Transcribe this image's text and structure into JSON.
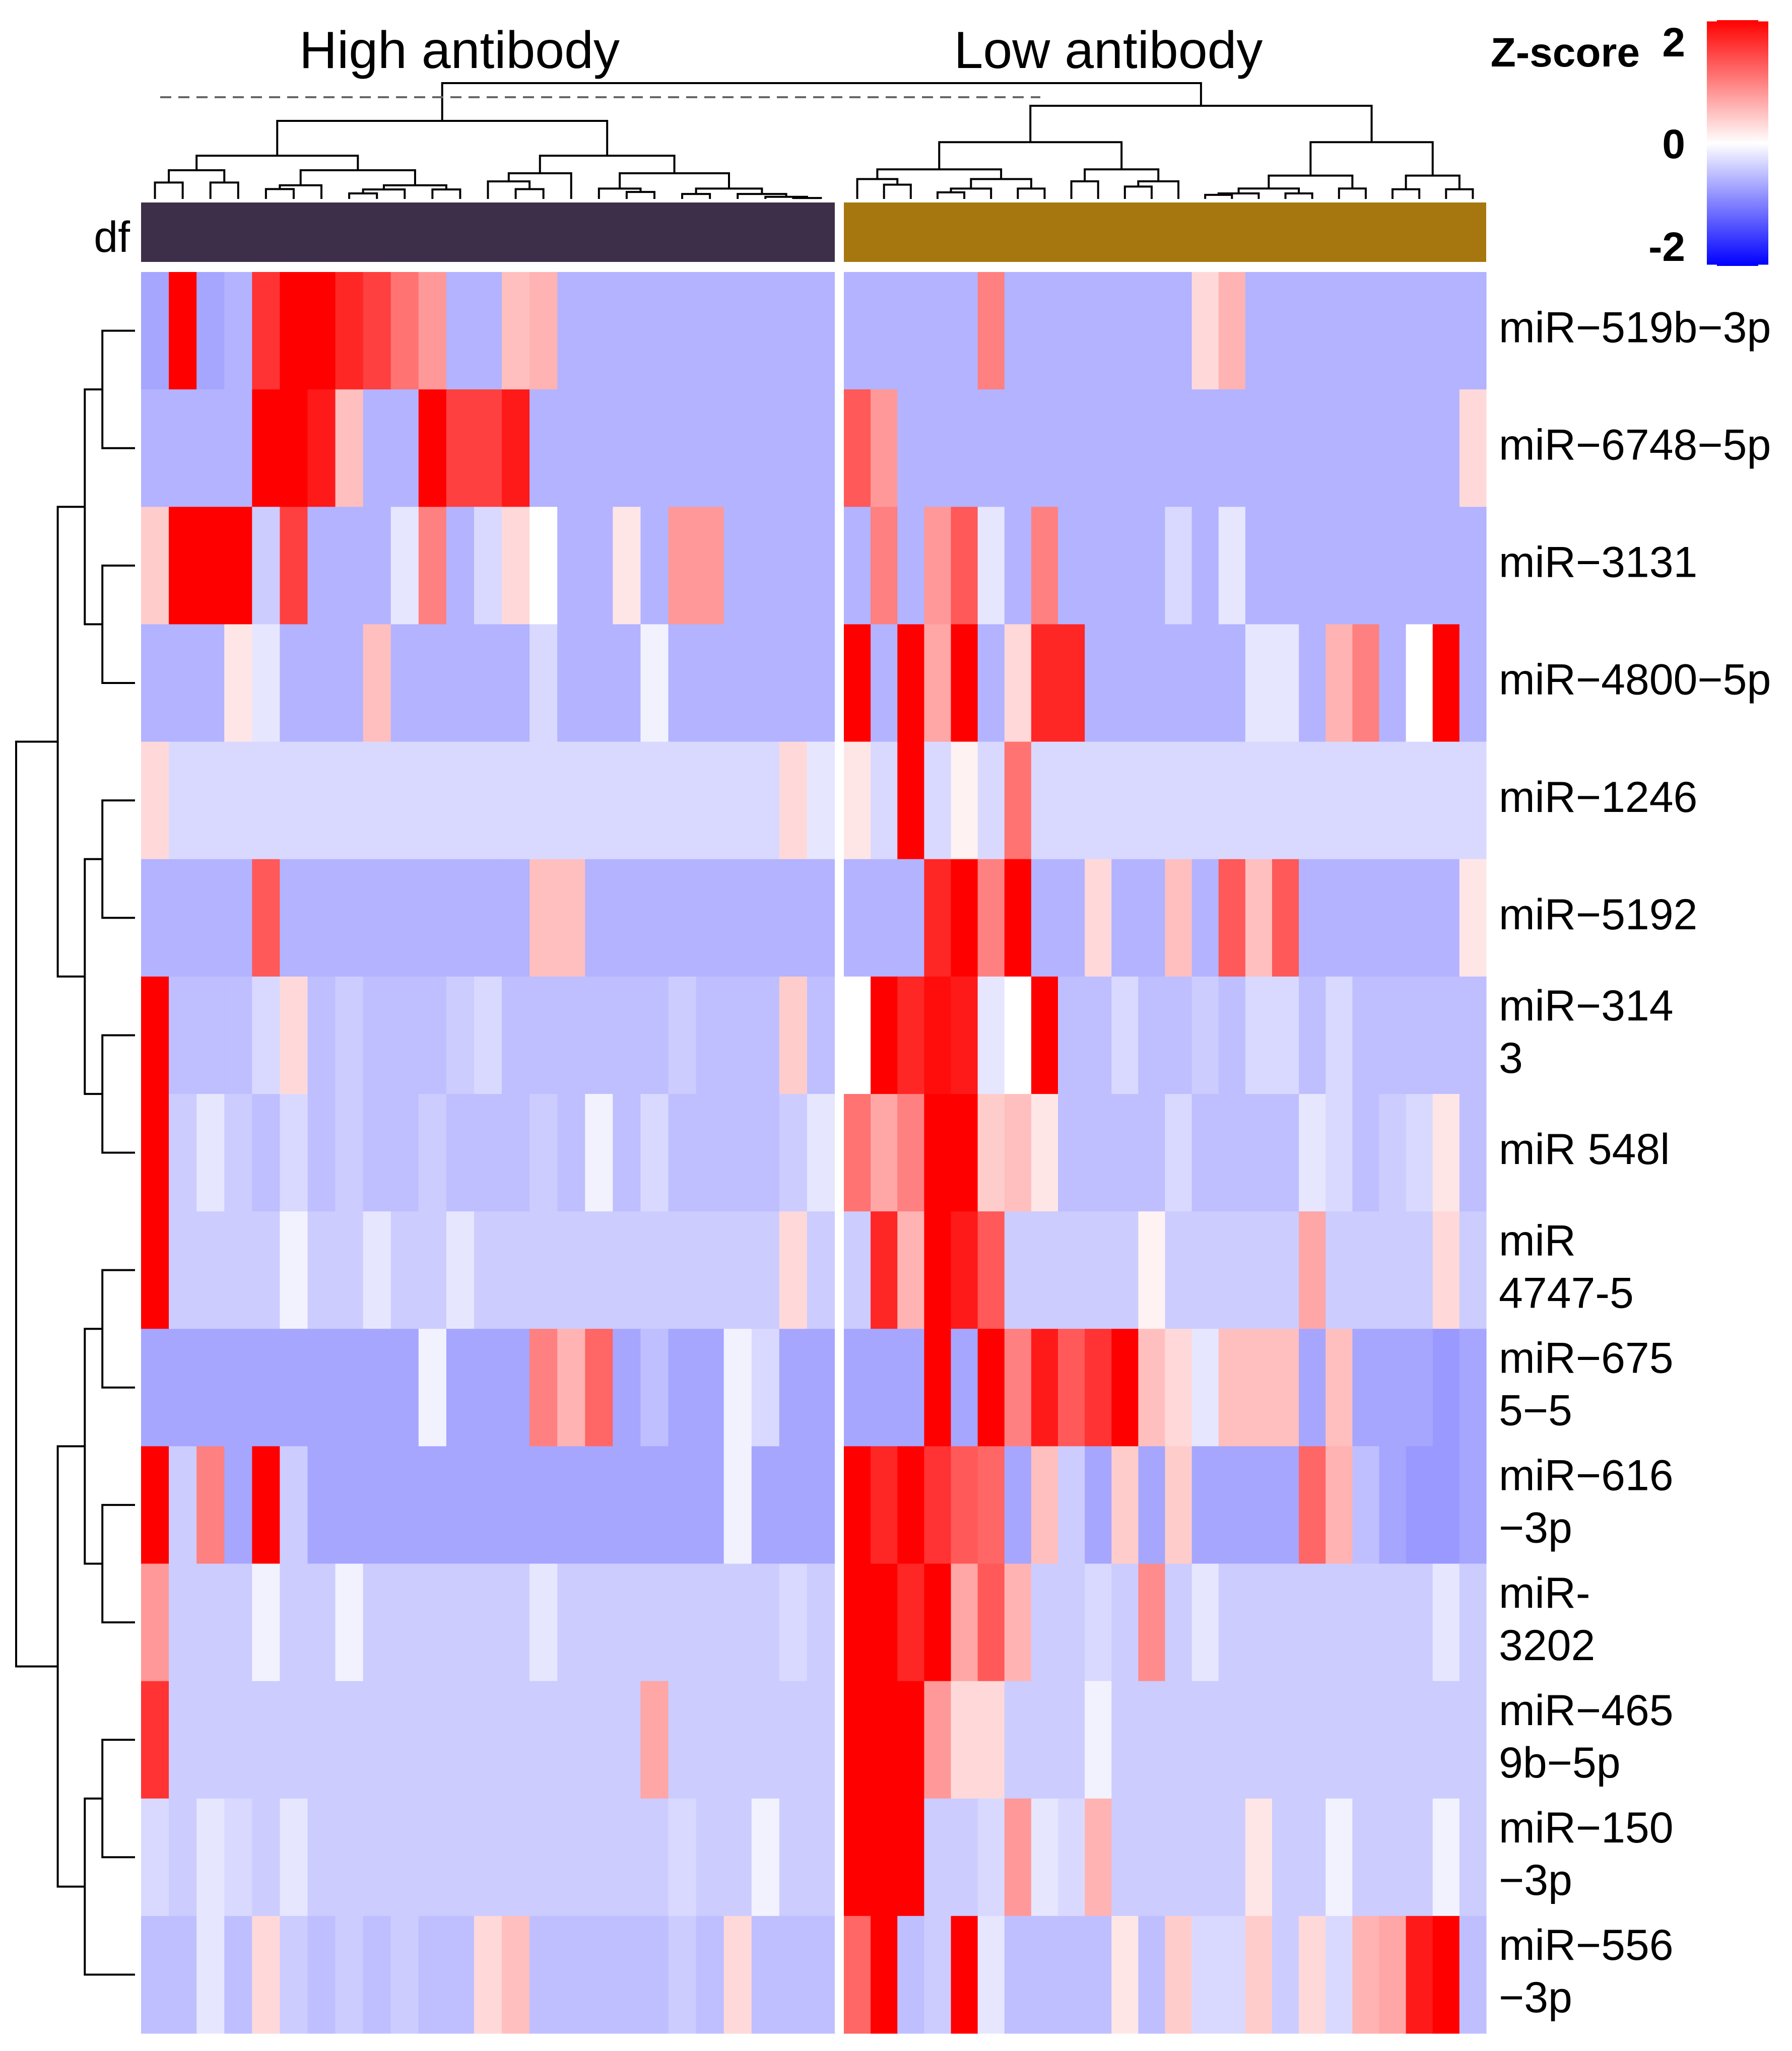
{
  "chart_data": {
    "type": "heatmap",
    "title": "",
    "groups": [
      {
        "name": "High antibody",
        "color": "#3d2f4a",
        "n_columns": 25
      },
      {
        "name": "Low antibody",
        "color": "#a6770f",
        "n_columns": 24
      }
    ],
    "annotation_label": "df",
    "legend": {
      "title": "Z-score",
      "ticks": [
        "2",
        "0",
        "-2"
      ],
      "values": [
        2,
        0,
        -2
      ],
      "range": [
        -2,
        2
      ],
      "colors": {
        "low": "#0000ff",
        "mid": "#ffffff",
        "high": "#ff0000"
      }
    },
    "rows": [
      {
        "label": "miR−519b−3p",
        "label_lines": [
          "miR−519b−3p"
        ],
        "high": [
          -0.7,
          2.0,
          -0.7,
          -0.6,
          1.6,
          2.0,
          2.0,
          1.7,
          1.5,
          1.1,
          0.8,
          -0.6,
          -0.6,
          0.5,
          0.6,
          -0.6,
          -0.6,
          -0.6,
          -0.6,
          -0.6,
          -0.6,
          -0.6,
          -0.6,
          -0.6,
          -0.6
        ],
        "low": [
          -0.6,
          -0.6,
          -0.6,
          -0.6,
          -0.6,
          1.0,
          -0.6,
          -0.6,
          -0.6,
          -0.6,
          -0.6,
          -0.6,
          -0.6,
          0.3,
          0.6,
          -0.6,
          -0.6,
          -0.6,
          -0.6,
          -0.6,
          -0.6,
          -0.6,
          -0.6,
          -0.6
        ]
      },
      {
        "label": "miR−6748−5p",
        "label_lines": [
          "miR−6748−5p"
        ],
        "high": [
          -0.6,
          -0.6,
          -0.6,
          -0.6,
          2.0,
          2.0,
          1.8,
          0.5,
          -0.6,
          -0.6,
          2.0,
          1.5,
          1.5,
          1.8,
          -0.6,
          -0.6,
          -0.6,
          -0.6,
          -0.6,
          -0.6,
          -0.6,
          -0.6,
          -0.6,
          -0.6,
          -0.6
        ],
        "low": [
          1.3,
          0.8,
          -0.6,
          -0.6,
          -0.6,
          -0.6,
          -0.6,
          -0.6,
          -0.6,
          -0.6,
          -0.6,
          -0.6,
          -0.6,
          -0.6,
          -0.6,
          -0.6,
          -0.6,
          -0.6,
          -0.6,
          -0.6,
          -0.6,
          -0.6,
          -0.6,
          0.3
        ]
      },
      {
        "label": "miR−3131",
        "label_lines": [
          "miR−3131"
        ],
        "high": [
          0.4,
          2.0,
          2.0,
          2.0,
          -0.4,
          1.5,
          -0.6,
          -0.6,
          -0.6,
          -0.2,
          1.0,
          -0.6,
          -0.3,
          0.3,
          0.0,
          -0.6,
          -0.6,
          0.2,
          -0.6,
          0.8,
          0.8,
          -0.6,
          -0.6,
          -0.6,
          -0.6
        ],
        "low": [
          -0.6,
          1.0,
          -0.6,
          0.8,
          1.3,
          -0.2,
          -0.6,
          1.0,
          -0.6,
          -0.6,
          -0.6,
          -0.6,
          -0.3,
          -0.6,
          -0.2,
          -0.6,
          -0.6,
          -0.6,
          -0.6,
          -0.6,
          -0.6,
          -0.6,
          -0.6,
          -0.6
        ]
      },
      {
        "label": "miR−4800−5p",
        "label_lines": [
          "miR−4800−5p"
        ],
        "high": [
          -0.6,
          -0.6,
          -0.6,
          0.2,
          -0.2,
          -0.6,
          -0.6,
          -0.6,
          0.5,
          -0.6,
          -0.6,
          -0.6,
          -0.6,
          -0.6,
          -0.3,
          -0.6,
          -0.6,
          -0.6,
          -0.1,
          -0.6,
          -0.6,
          -0.6,
          -0.6,
          -0.6,
          -0.6
        ],
        "low": [
          2.0,
          -0.6,
          2.0,
          0.7,
          2.0,
          -0.6,
          0.3,
          1.7,
          1.7,
          -0.6,
          -0.6,
          -0.6,
          -0.6,
          -0.6,
          -0.6,
          -0.2,
          -0.2,
          -0.6,
          0.6,
          1.0,
          -0.6,
          0.0,
          2.0,
          -0.6
        ]
      },
      {
        "label": "miR−1246",
        "label_lines": [
          "miR−1246"
        ],
        "high": [
          0.3,
          -0.3,
          -0.3,
          -0.3,
          -0.3,
          -0.3,
          -0.3,
          -0.3,
          -0.3,
          -0.3,
          -0.3,
          -0.3,
          -0.3,
          -0.3,
          -0.3,
          -0.3,
          -0.3,
          -0.3,
          -0.3,
          -0.3,
          -0.3,
          -0.3,
          -0.3,
          0.3,
          -0.2
        ],
        "low": [
          0.2,
          -0.3,
          2.0,
          -0.3,
          0.1,
          -0.3,
          1.1,
          -0.3,
          -0.3,
          -0.3,
          -0.3,
          -0.3,
          -0.3,
          -0.3,
          -0.3,
          -0.3,
          -0.3,
          -0.3,
          -0.3,
          -0.3,
          -0.3,
          -0.3,
          -0.3,
          -0.3
        ]
      },
      {
        "label": "miR−5192",
        "label_lines": [
          "miR−5192"
        ],
        "high": [
          -0.6,
          -0.6,
          -0.6,
          -0.6,
          1.3,
          -0.6,
          -0.6,
          -0.6,
          -0.6,
          -0.6,
          -0.6,
          -0.6,
          -0.6,
          -0.6,
          0.5,
          0.5,
          -0.6,
          -0.6,
          -0.6,
          -0.6,
          -0.6,
          -0.6,
          -0.6,
          -0.6,
          -0.6
        ],
        "low": [
          -0.6,
          -0.6,
          -0.6,
          1.7,
          2.0,
          1.0,
          2.0,
          -0.6,
          -0.6,
          0.3,
          -0.6,
          -0.6,
          0.5,
          -0.6,
          1.3,
          0.5,
          1.3,
          -0.6,
          -0.6,
          -0.6,
          -0.6,
          -0.6,
          -0.6,
          0.2
        ]
      },
      {
        "label": "miR−3143",
        "label_lines": [
          "miR−314",
          "3"
        ],
        "high": [
          2.0,
          -0.5,
          -0.5,
          -0.5,
          -0.3,
          0.3,
          -0.5,
          -0.4,
          -0.5,
          -0.5,
          -0.5,
          -0.4,
          -0.3,
          -0.5,
          -0.5,
          -0.5,
          -0.5,
          -0.5,
          -0.5,
          -0.4,
          -0.5,
          -0.5,
          -0.5,
          0.4,
          -0.5
        ],
        "low": [
          0.0,
          2.0,
          1.7,
          1.9,
          1.8,
          -0.2,
          0.0,
          2.0,
          -0.5,
          -0.5,
          -0.3,
          -0.5,
          -0.5,
          -0.4,
          -0.5,
          -0.3,
          -0.3,
          -0.5,
          -0.3,
          -0.5,
          -0.5,
          -0.5,
          -0.5,
          -0.5
        ]
      },
      {
        "label": "miR 548l",
        "label_lines": [
          "miR 548l"
        ],
        "high": [
          2.0,
          -0.4,
          -0.2,
          -0.4,
          -0.5,
          -0.3,
          -0.5,
          -0.4,
          -0.5,
          -0.5,
          -0.4,
          -0.5,
          -0.5,
          -0.5,
          -0.4,
          -0.5,
          -0.1,
          -0.5,
          -0.3,
          -0.5,
          -0.5,
          -0.5,
          -0.5,
          -0.4,
          -0.2
        ],
        "low": [
          1.1,
          0.7,
          1.0,
          2.0,
          2.0,
          0.4,
          0.5,
          0.2,
          -0.5,
          -0.5,
          -0.5,
          -0.5,
          -0.3,
          -0.5,
          -0.5,
          -0.5,
          -0.5,
          -0.2,
          -0.3,
          -0.5,
          -0.4,
          -0.3,
          0.2,
          -0.5
        ]
      },
      {
        "label": "miR 4747-5",
        "label_lines": [
          "miR",
          "4747-5"
        ],
        "high": [
          2.0,
          -0.4,
          -0.4,
          -0.4,
          -0.4,
          -0.1,
          -0.4,
          -0.4,
          -0.2,
          -0.4,
          -0.4,
          -0.2,
          -0.4,
          -0.4,
          -0.4,
          -0.4,
          -0.4,
          -0.4,
          -0.4,
          -0.4,
          -0.4,
          -0.4,
          -0.4,
          0.3,
          -0.4
        ],
        "low": [
          -0.4,
          1.7,
          0.6,
          2.0,
          1.8,
          1.3,
          -0.4,
          -0.4,
          -0.4,
          -0.4,
          -0.4,
          0.1,
          -0.4,
          -0.4,
          -0.4,
          -0.4,
          -0.4,
          0.7,
          -0.4,
          -0.4,
          -0.4,
          -0.4,
          0.3,
          -0.4
        ]
      },
      {
        "label": "miR−6755−5",
        "label_lines": [
          "miR−675",
          "5−5"
        ],
        "high": [
          -0.7,
          -0.7,
          -0.7,
          -0.7,
          -0.7,
          -0.7,
          -0.7,
          -0.7,
          -0.7,
          -0.7,
          -0.1,
          -0.7,
          -0.7,
          -0.7,
          1.0,
          0.6,
          1.2,
          -0.7,
          -0.5,
          -0.7,
          -0.7,
          -0.1,
          -0.3,
          -0.7,
          -0.7
        ],
        "low": [
          -0.7,
          -0.7,
          -0.7,
          2.0,
          -0.7,
          2.0,
          1.0,
          1.8,
          1.3,
          1.6,
          2.0,
          0.5,
          0.3,
          -0.2,
          0.5,
          0.5,
          0.5,
          -0.7,
          0.5,
          -0.7,
          -0.7,
          -0.7,
          -0.8,
          -0.7
        ]
      },
      {
        "label": "miR−616−3p",
        "label_lines": [
          "miR−616",
          "−3p"
        ],
        "high": [
          2.0,
          -0.4,
          1.0,
          -0.7,
          2.0,
          -0.4,
          -0.7,
          -0.7,
          -0.7,
          -0.7,
          -0.7,
          -0.7,
          -0.7,
          -0.7,
          -0.7,
          -0.7,
          -0.7,
          -0.7,
          -0.7,
          -0.7,
          -0.7,
          -0.1,
          -0.7,
          -0.7,
          -0.7
        ],
        "low": [
          2.0,
          1.7,
          2.0,
          1.6,
          1.3,
          1.2,
          -0.7,
          0.5,
          -0.4,
          -0.7,
          0.4,
          -0.7,
          0.4,
          -0.7,
          -0.7,
          -0.7,
          -0.7,
          1.2,
          0.6,
          -0.5,
          -0.7,
          -0.8,
          -0.8,
          -0.7
        ]
      },
      {
        "label": "miR-3202",
        "label_lines": [
          "miR-",
          "3202"
        ],
        "high": [
          0.8,
          -0.4,
          -0.4,
          -0.4,
          -0.1,
          -0.4,
          -0.4,
          -0.1,
          -0.4,
          -0.4,
          -0.4,
          -0.4,
          -0.4,
          -0.4,
          -0.2,
          -0.4,
          -0.4,
          -0.4,
          -0.4,
          -0.4,
          -0.4,
          -0.4,
          -0.4,
          -0.3,
          -0.4
        ],
        "low": [
          2.0,
          2.0,
          1.7,
          2.0,
          0.7,
          1.3,
          0.6,
          -0.4,
          -0.4,
          -0.3,
          -0.4,
          0.9,
          -0.4,
          -0.2,
          -0.4,
          -0.4,
          -0.4,
          -0.4,
          -0.4,
          -0.4,
          -0.4,
          -0.4,
          -0.2,
          -0.4
        ]
      },
      {
        "label": "miR−4659b−5p",
        "label_lines": [
          "miR−465",
          "9b−5p"
        ],
        "high": [
          1.6,
          -0.4,
          -0.4,
          -0.4,
          -0.4,
          -0.4,
          -0.4,
          -0.4,
          -0.4,
          -0.4,
          -0.4,
          -0.4,
          -0.4,
          -0.4,
          -0.4,
          -0.4,
          -0.4,
          -0.4,
          0.7,
          -0.4,
          -0.4,
          -0.4,
          -0.4,
          -0.4,
          -0.4
        ],
        "low": [
          2.0,
          2.0,
          2.0,
          0.8,
          0.3,
          0.3,
          -0.4,
          -0.4,
          -0.4,
          -0.1,
          -0.4,
          -0.4,
          -0.4,
          -0.4,
          -0.4,
          -0.4,
          -0.4,
          -0.4,
          -0.4,
          -0.4,
          -0.4,
          -0.4,
          -0.4,
          -0.4
        ]
      },
      {
        "label": "miR−150−3p",
        "label_lines": [
          "miR−150",
          "−3p"
        ],
        "high": [
          -0.3,
          -0.4,
          -0.2,
          -0.3,
          -0.4,
          -0.2,
          -0.4,
          -0.4,
          -0.4,
          -0.4,
          -0.4,
          -0.4,
          -0.4,
          -0.4,
          -0.4,
          -0.4,
          -0.4,
          -0.4,
          -0.4,
          -0.3,
          -0.4,
          -0.4,
          -0.1,
          -0.4,
          -0.4
        ],
        "low": [
          2.0,
          2.0,
          2.0,
          -0.4,
          -0.4,
          -0.3,
          0.8,
          -0.2,
          -0.3,
          0.6,
          -0.4,
          -0.4,
          -0.4,
          -0.4,
          -0.4,
          0.2,
          -0.4,
          -0.4,
          -0.1,
          -0.4,
          -0.4,
          -0.4,
          -0.1,
          -0.4
        ]
      },
      {
        "label": "miR−556−3p",
        "label_lines": [
          "miR−556",
          "−3p"
        ],
        "high": [
          -0.5,
          -0.5,
          -0.2,
          -0.5,
          0.3,
          -0.4,
          -0.5,
          -0.4,
          -0.5,
          -0.4,
          -0.5,
          -0.5,
          0.3,
          0.5,
          -0.5,
          -0.5,
          -0.5,
          -0.5,
          -0.5,
          -0.4,
          -0.5,
          0.3,
          -0.5,
          -0.5,
          -0.5
        ],
        "low": [
          1.2,
          2.0,
          -0.5,
          -0.4,
          2.0,
          -0.2,
          -0.5,
          -0.5,
          -0.5,
          -0.5,
          0.2,
          -0.5,
          0.4,
          -0.3,
          -0.3,
          0.4,
          -0.4,
          0.3,
          -0.3,
          0.6,
          0.7,
          1.8,
          2.0,
          -0.5
        ]
      }
    ]
  }
}
